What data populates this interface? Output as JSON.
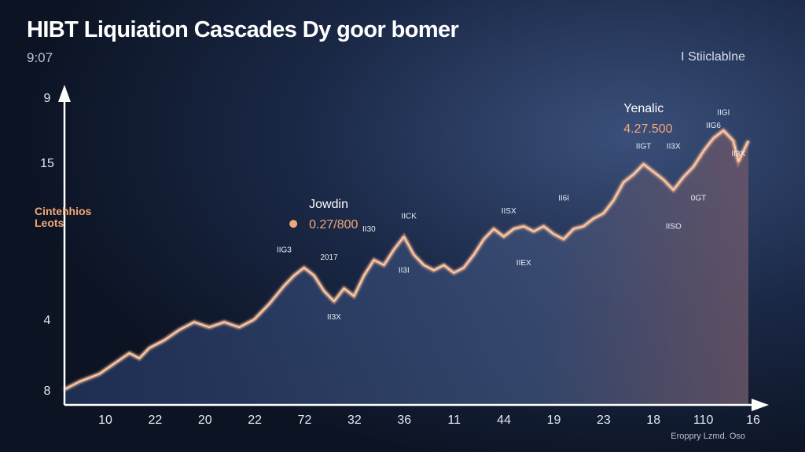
{
  "header": {
    "title": "HIBT Liquiation Cascades Dy goor bomer",
    "subtitle": "9:07",
    "legend_label": "I Stiiclablne",
    "source": "Eroppry Lzmd. Oso"
  },
  "colors": {
    "background": "#0d1526",
    "line": "#f2a878",
    "line_highlight": "#ffd2b0",
    "axis": "#ffffff",
    "text": "#e4e8f0"
  },
  "chart_data": {
    "type": "line",
    "title": "HIBT Liquiation Cascades Dy goor bomer",
    "ylabel": "Cintehhios Leots",
    "xlabel": "",
    "x_ticks": [
      "10",
      "22",
      "20",
      "22",
      "72",
      "32",
      "36",
      "11",
      "44",
      "19",
      "23",
      "18",
      "110",
      "16"
    ],
    "y_ticks": [
      "8",
      "4",
      "15",
      "9"
    ],
    "series": [
      {
        "values": [
          [
            0,
            0.6
          ],
          [
            0.3,
            0.9
          ],
          [
            0.7,
            1.2
          ],
          [
            1.0,
            1.6
          ],
          [
            1.3,
            2.0
          ],
          [
            1.5,
            1.8
          ],
          [
            1.7,
            2.2
          ],
          [
            2.0,
            2.5
          ],
          [
            2.3,
            2.9
          ],
          [
            2.6,
            3.2
          ],
          [
            2.9,
            3.0
          ],
          [
            3.2,
            3.2
          ],
          [
            3.5,
            3.0
          ],
          [
            3.8,
            3.3
          ],
          [
            4.1,
            3.9
          ],
          [
            4.4,
            4.6
          ],
          [
            4.6,
            5.0
          ],
          [
            4.8,
            5.3
          ],
          [
            5.0,
            5.0
          ],
          [
            5.2,
            4.4
          ],
          [
            5.4,
            4.0
          ],
          [
            5.6,
            4.5
          ],
          [
            5.8,
            4.2
          ],
          [
            6.0,
            5.0
          ],
          [
            6.2,
            5.6
          ],
          [
            6.4,
            5.4
          ],
          [
            6.6,
            6.0
          ],
          [
            6.8,
            6.5
          ],
          [
            7.0,
            5.8
          ],
          [
            7.2,
            5.4
          ],
          [
            7.4,
            5.2
          ],
          [
            7.6,
            5.4
          ],
          [
            7.8,
            5.1
          ],
          [
            8.0,
            5.3
          ],
          [
            8.2,
            5.8
          ],
          [
            8.4,
            6.4
          ],
          [
            8.6,
            6.8
          ],
          [
            8.8,
            6.5
          ],
          [
            9.0,
            6.8
          ],
          [
            9.2,
            6.9
          ],
          [
            9.4,
            6.7
          ],
          [
            9.6,
            6.9
          ],
          [
            9.8,
            6.6
          ],
          [
            10.0,
            6.4
          ],
          [
            10.2,
            6.8
          ],
          [
            10.4,
            6.9
          ],
          [
            10.6,
            7.2
          ],
          [
            10.8,
            7.4
          ],
          [
            11.0,
            7.9
          ],
          [
            11.2,
            8.6
          ],
          [
            11.4,
            8.9
          ],
          [
            11.6,
            9.3
          ],
          [
            11.8,
            9.0
          ],
          [
            12.0,
            8.7
          ],
          [
            12.2,
            8.3
          ],
          [
            12.4,
            8.8
          ],
          [
            12.6,
            9.2
          ],
          [
            12.8,
            9.8
          ],
          [
            13.0,
            10.3
          ],
          [
            13.2,
            10.6
          ],
          [
            13.4,
            10.2
          ],
          [
            13.5,
            9.4
          ],
          [
            13.6,
            9.8
          ],
          [
            13.7,
            10.2
          ]
        ]
      }
    ],
    "grid": false,
    "legend": "top-right"
  },
  "annotations": [
    {
      "id": "jowdin",
      "name": "Jowdin",
      "value": "0.27/800",
      "x": 4.9,
      "y": 7.6
    },
    {
      "id": "yenalic",
      "name": "Yenalic",
      "value": "4.27.500",
      "x": 11.2,
      "y": 11.3
    }
  ],
  "point_labels": [
    {
      "text": "IIG3",
      "x": 4.4,
      "y": 5.9
    },
    {
      "text": "2017",
      "x": 5.3,
      "y": 5.6
    },
    {
      "text": "II3X",
      "x": 5.4,
      "y": 3.3
    },
    {
      "text": "II30",
      "x": 6.1,
      "y": 6.7
    },
    {
      "text": "IICK",
      "x": 6.9,
      "y": 7.2
    },
    {
      "text": "II3I",
      "x": 6.8,
      "y": 5.1
    },
    {
      "text": "IISX",
      "x": 8.9,
      "y": 7.4
    },
    {
      "text": "IIEX",
      "x": 9.2,
      "y": 5.4
    },
    {
      "text": "II6I",
      "x": 10.0,
      "y": 7.9
    },
    {
      "text": "IIGT",
      "x": 11.6,
      "y": 9.9
    },
    {
      "text": "II3X",
      "x": 12.2,
      "y": 9.9
    },
    {
      "text": "IISO",
      "x": 12.2,
      "y": 6.8
    },
    {
      "text": "0GT",
      "x": 12.7,
      "y": 7.9
    },
    {
      "text": "IIG6",
      "x": 13.0,
      "y": 10.7
    },
    {
      "text": "IIGI",
      "x": 13.2,
      "y": 11.2
    },
    {
      "text": "II3X",
      "x": 13.5,
      "y": 9.6
    }
  ],
  "axes": {
    "x_range": [
      0,
      13.7
    ],
    "y_range": [
      0,
      12
    ]
  }
}
